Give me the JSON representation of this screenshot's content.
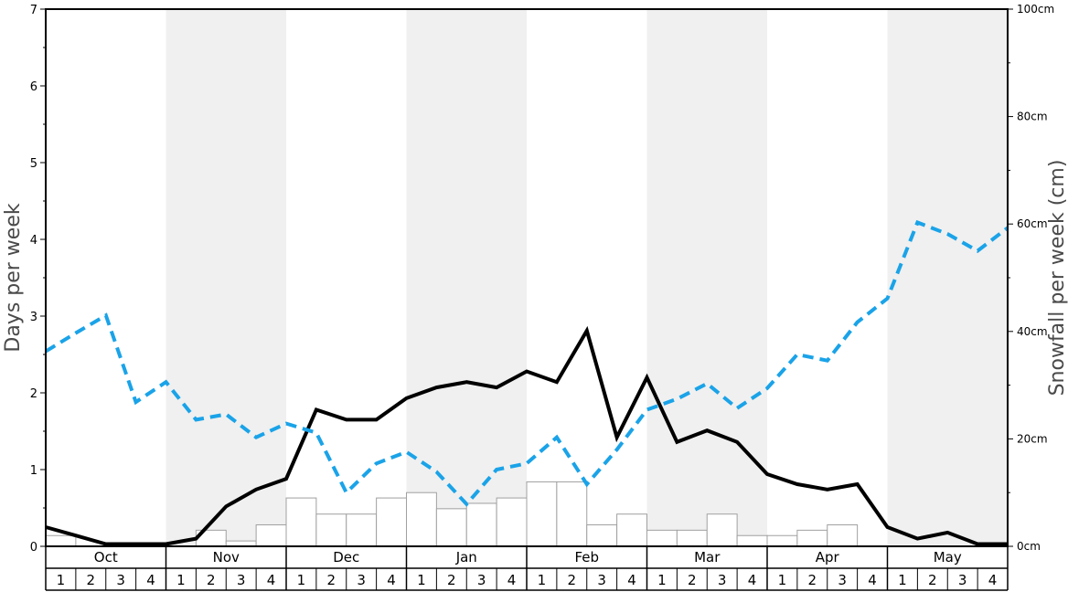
{
  "chart_data": {
    "type": "bar+line",
    "left_axis": {
      "label": "Days per week",
      "ylim": [
        0,
        7
      ],
      "ticks": [
        "0",
        "1",
        "2",
        "3",
        "4",
        "5",
        "6",
        "7"
      ]
    },
    "right_axis": {
      "label": "Snowfall per week (cm)",
      "ylim": [
        0,
        100
      ],
      "ticks": [
        "0cm",
        "20cm",
        "40cm",
        "60cm",
        "80cm",
        "100cm"
      ]
    },
    "months": [
      "Oct",
      "Nov",
      "Dec",
      "Jan",
      "Feb",
      "Mar",
      "Apr",
      "May"
    ],
    "weeks": [
      "1",
      "2",
      "3",
      "4"
    ],
    "shaded_months": [
      "Nov",
      "Jan",
      "Mar",
      "May"
    ],
    "series": [
      {
        "kind": "bar",
        "axis": "right",
        "unit": "cm",
        "color": "#ffffff",
        "stroke": "#a0a0a0",
        "values": [
          2,
          0,
          0,
          0,
          0,
          3,
          1,
          4,
          9,
          6,
          6,
          9,
          10,
          7,
          8,
          9,
          12,
          12,
          4,
          6,
          3,
          3,
          6,
          2,
          2,
          3,
          4,
          0,
          0,
          0,
          0,
          0
        ]
      },
      {
        "kind": "line",
        "axis": "left",
        "style": "solid",
        "color": "#000000",
        "values": [
          0.25,
          0.14,
          0.03,
          0.03,
          0.03,
          0.1,
          0.52,
          0.74,
          0.88,
          1.78,
          1.65,
          1.65,
          1.93,
          2.07,
          2.14,
          2.07,
          2.28,
          2.14,
          2.81,
          1.42,
          2.2,
          1.36,
          1.51,
          1.36,
          0.94,
          0.81,
          0.74,
          0.81,
          0.25,
          0.1,
          0.18,
          0.03,
          0.03
        ]
      },
      {
        "kind": "line",
        "axis": "left",
        "style": "dashed",
        "color": "#1aa3e8",
        "values": [
          2.54,
          2.78,
          3.01,
          1.88,
          2.14,
          1.65,
          1.72,
          1.42,
          1.6,
          1.48,
          0.7,
          1.08,
          1.23,
          0.97,
          0.55,
          1.0,
          1.08,
          1.42,
          0.81,
          1.26,
          1.78,
          1.92,
          2.12,
          1.8,
          2.06,
          2.5,
          2.42,
          2.92,
          3.23,
          4.22,
          4.07,
          3.85,
          4.15
        ]
      }
    ]
  }
}
